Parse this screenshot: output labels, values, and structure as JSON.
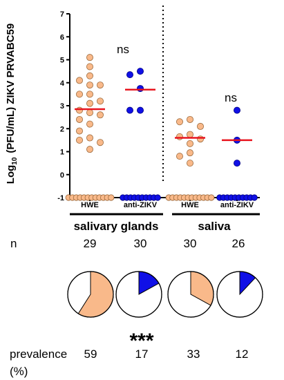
{
  "colors": {
    "hwe": "#f9b98a",
    "hwe_stroke": "#9c6a3c",
    "anti": "#1010e6",
    "anti_stroke": "#000080",
    "median": "#e8141e",
    "axis": "#000000"
  },
  "chart_data": {
    "type": "scatter",
    "ylabel_prefix": "Log",
    "ylabel_sub": "10",
    "ylabel_rest": "(PFU/mL)  ZIKV PRVABC59",
    "ylim": [
      -1,
      7
    ],
    "yticks": [
      "-1",
      "0",
      "1",
      "2",
      "3",
      "4",
      "5",
      "6",
      "7"
    ],
    "categories": [
      "HWE",
      "anti-ZIKV",
      "HWE",
      "anti-ZIKV"
    ],
    "groups": [
      "salivary glands",
      "saliva"
    ],
    "significance": [
      "ns",
      "ns"
    ],
    "series": [
      {
        "category": "HWE",
        "group": "salivary glands",
        "color_key": "hwe",
        "median": 2.85,
        "positive_values": [
          5.1,
          4.7,
          4.3,
          4.1,
          3.9,
          3.9,
          3.5,
          3.5,
          3.2,
          3.1,
          2.8,
          2.7,
          2.6,
          2.4,
          2.2,
          1.9,
          1.6,
          1.5,
          1.4,
          1.1
        ],
        "below_detection_count": 12
      },
      {
        "category": "anti-ZIKV",
        "group": "salivary glands",
        "color_key": "anti",
        "median": 3.7,
        "positive_values": [
          4.5,
          4.35,
          3.75,
          2.8,
          2.8
        ],
        "below_detection_count": 10
      },
      {
        "category": "HWE",
        "group": "saliva",
        "color_key": "hwe",
        "median": 1.6,
        "positive_values": [
          2.4,
          2.3,
          2.1,
          1.75,
          1.65,
          1.55,
          1.35,
          0.95,
          0.8,
          0.5
        ],
        "below_detection_count": 12
      },
      {
        "category": "anti-ZIKV",
        "group": "saliva",
        "color_key": "anti",
        "median": 1.5,
        "positive_values": [
          2.8,
          1.5,
          0.5
        ],
        "below_detection_count": 10
      }
    ],
    "n_label": "n",
    "n_values": [
      "29",
      "30",
      "30",
      "26"
    ],
    "pie_values": [
      59,
      17,
      33,
      12
    ],
    "prevalence_label": "prevalence",
    "prevalence_unit": "(%)",
    "prevalence_values": [
      "59",
      "17",
      "33",
      "12"
    ],
    "pie_significance": "***"
  }
}
